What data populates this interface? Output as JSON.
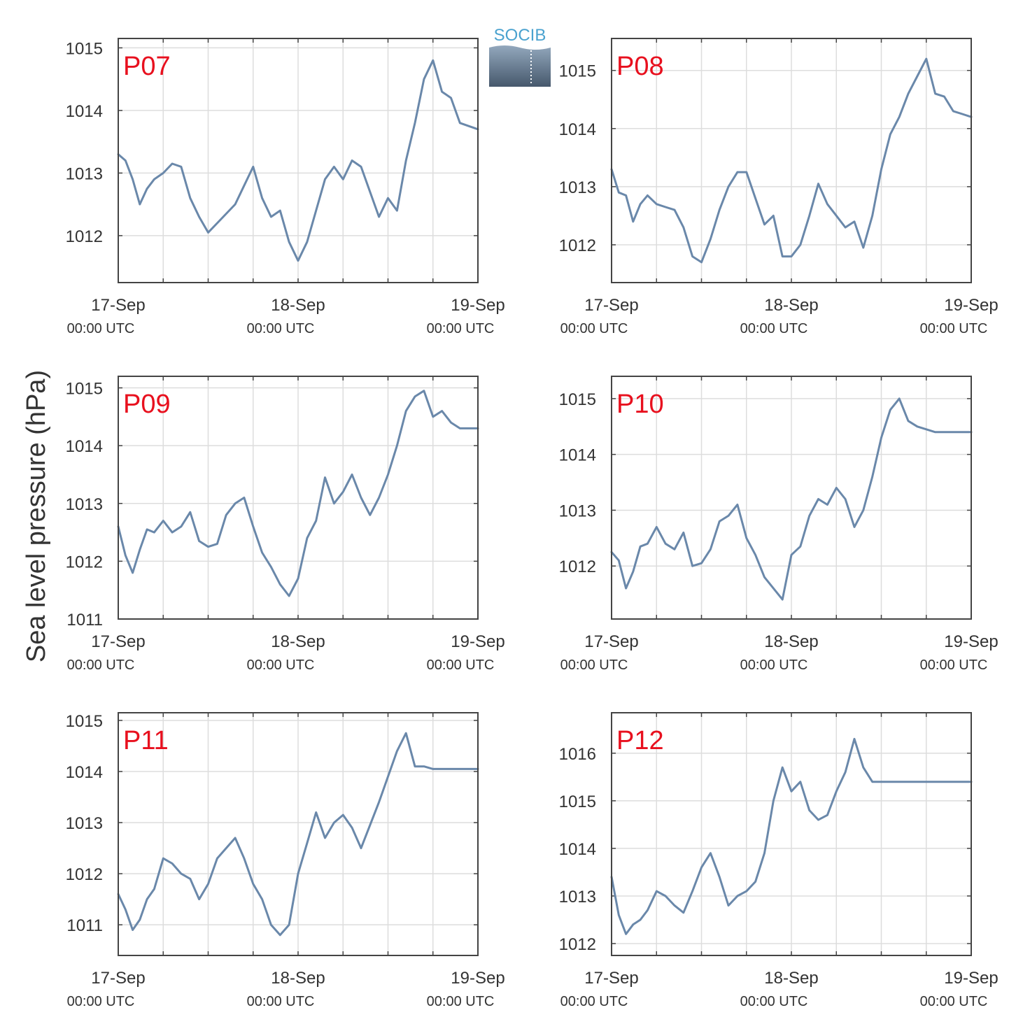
{
  "figure": {
    "ylabel": "Sea level pressure (hPa)",
    "logo_text": "SOCIB",
    "x_ticks": [
      {
        "date": "17-Sep",
        "time": "00:00 UTC",
        "day": 0
      },
      {
        "date": "18-Sep",
        "time": "00:00 UTC",
        "day": 1
      },
      {
        "date": "19-Sep",
        "time": "00:00 UTC",
        "day": 2
      }
    ],
    "line_color": "#6a88aa",
    "label_color": "#e8101e"
  },
  "chart_data": [
    {
      "type": "line",
      "title": "P07",
      "xlim": [
        0,
        2
      ],
      "ylim": [
        1011.25,
        1015.15
      ],
      "yticks": [
        1012,
        1013,
        1014,
        1015
      ],
      "x": [
        0,
        0.04,
        0.08,
        0.12,
        0.16,
        0.2,
        0.25,
        0.3,
        0.35,
        0.4,
        0.45,
        0.5,
        0.55,
        0.6,
        0.65,
        0.7,
        0.75,
        0.8,
        0.85,
        0.9,
        0.95,
        1.0,
        1.05,
        1.1,
        1.15,
        1.2,
        1.25,
        1.3,
        1.35,
        1.4,
        1.45,
        1.5,
        1.55,
        1.6,
        1.65,
        1.7,
        1.75,
        1.8,
        1.85,
        1.9,
        1.95,
        2.0
      ],
      "y": [
        1013.3,
        1013.2,
        1012.9,
        1012.5,
        1012.75,
        1012.9,
        1013.0,
        1013.15,
        1013.1,
        1012.6,
        1012.3,
        1012.05,
        1012.2,
        1012.35,
        1012.5,
        1012.8,
        1013.1,
        1012.6,
        1012.3,
        1012.4,
        1011.9,
        1011.6,
        1011.9,
        1012.4,
        1012.9,
        1013.1,
        1012.9,
        1013.2,
        1013.1,
        1012.7,
        1012.3,
        1012.6,
        1012.4,
        1013.2,
        1013.8,
        1014.5,
        1014.8,
        1014.3,
        1014.2,
        1013.8,
        1013.75,
        1013.7
      ]
    },
    {
      "type": "line",
      "title": "P08",
      "xlim": [
        0,
        2
      ],
      "ylim": [
        1011.35,
        1015.55
      ],
      "yticks": [
        1012,
        1013,
        1014,
        1015
      ],
      "x": [
        0,
        0.04,
        0.08,
        0.12,
        0.16,
        0.2,
        0.25,
        0.3,
        0.35,
        0.4,
        0.45,
        0.5,
        0.55,
        0.6,
        0.65,
        0.7,
        0.75,
        0.8,
        0.85,
        0.9,
        0.95,
        1.0,
        1.05,
        1.1,
        1.15,
        1.2,
        1.25,
        1.3,
        1.35,
        1.4,
        1.45,
        1.5,
        1.55,
        1.6,
        1.65,
        1.7,
        1.75,
        1.8,
        1.85,
        1.9,
        1.95,
        2.0
      ],
      "y": [
        1013.3,
        1012.9,
        1012.85,
        1012.4,
        1012.7,
        1012.85,
        1012.7,
        1012.65,
        1012.6,
        1012.3,
        1011.8,
        1011.7,
        1012.1,
        1012.6,
        1013.0,
        1013.25,
        1013.25,
        1012.8,
        1012.35,
        1012.5,
        1011.8,
        1011.8,
        1012.0,
        1012.5,
        1013.05,
        1012.7,
        1012.5,
        1012.3,
        1012.4,
        1011.95,
        1012.5,
        1013.3,
        1013.9,
        1014.2,
        1014.6,
        1014.9,
        1015.2,
        1014.6,
        1014.55,
        1014.3,
        1014.25,
        1014.2
      ]
    },
    {
      "type": "line",
      "title": "P09",
      "xlim": [
        0,
        2
      ],
      "ylim": [
        1011.0,
        1015.2
      ],
      "yticks": [
        1011,
        1012,
        1013,
        1014,
        1015
      ],
      "x": [
        0,
        0.04,
        0.08,
        0.12,
        0.16,
        0.2,
        0.25,
        0.3,
        0.35,
        0.4,
        0.45,
        0.5,
        0.55,
        0.6,
        0.65,
        0.7,
        0.75,
        0.8,
        0.85,
        0.9,
        0.95,
        1.0,
        1.05,
        1.1,
        1.15,
        1.2,
        1.25,
        1.3,
        1.35,
        1.4,
        1.45,
        1.5,
        1.55,
        1.6,
        1.65,
        1.7,
        1.75,
        1.8,
        1.85,
        1.9,
        1.95,
        2.0
      ],
      "y": [
        1012.6,
        1012.1,
        1011.8,
        1012.2,
        1012.55,
        1012.5,
        1012.7,
        1012.5,
        1012.6,
        1012.85,
        1012.35,
        1012.25,
        1012.3,
        1012.8,
        1013.0,
        1013.1,
        1012.6,
        1012.15,
        1011.9,
        1011.6,
        1011.4,
        1011.7,
        1012.4,
        1012.7,
        1013.45,
        1013.0,
        1013.2,
        1013.5,
        1013.1,
        1012.8,
        1013.1,
        1013.5,
        1014.0,
        1014.6,
        1014.85,
        1014.95,
        1014.5,
        1014.6,
        1014.4,
        1014.3,
        1014.3,
        1014.3
      ]
    },
    {
      "type": "line",
      "title": "P10",
      "xlim": [
        0,
        2
      ],
      "ylim": [
        1011.05,
        1015.4
      ],
      "yticks": [
        1012,
        1013,
        1014,
        1015
      ],
      "x": [
        0,
        0.04,
        0.08,
        0.12,
        0.16,
        0.2,
        0.25,
        0.3,
        0.35,
        0.4,
        0.45,
        0.5,
        0.55,
        0.6,
        0.65,
        0.7,
        0.75,
        0.8,
        0.85,
        0.9,
        0.95,
        1.0,
        1.05,
        1.1,
        1.15,
        1.2,
        1.25,
        1.3,
        1.35,
        1.4,
        1.45,
        1.5,
        1.55,
        1.6,
        1.65,
        1.7,
        1.75,
        1.8,
        1.85,
        1.9,
        1.95,
        2.0
      ],
      "y": [
        1012.25,
        1012.1,
        1011.6,
        1011.9,
        1012.35,
        1012.4,
        1012.7,
        1012.4,
        1012.3,
        1012.6,
        1012.0,
        1012.05,
        1012.3,
        1012.8,
        1012.9,
        1013.1,
        1012.5,
        1012.2,
        1011.8,
        1011.6,
        1011.4,
        1012.2,
        1012.35,
        1012.9,
        1013.2,
        1013.1,
        1013.4,
        1013.2,
        1012.7,
        1013.0,
        1013.6,
        1014.3,
        1014.8,
        1015.0,
        1014.6,
        1014.5,
        1014.45,
        1014.4,
        1014.4,
        1014.4,
        1014.4,
        1014.4
      ]
    },
    {
      "type": "line",
      "title": "P11",
      "xlim": [
        0,
        2
      ],
      "ylim": [
        1010.4,
        1015.15
      ],
      "yticks": [
        1011,
        1012,
        1013,
        1014,
        1015
      ],
      "x": [
        0,
        0.04,
        0.08,
        0.12,
        0.16,
        0.2,
        0.25,
        0.3,
        0.35,
        0.4,
        0.45,
        0.5,
        0.55,
        0.6,
        0.65,
        0.7,
        0.75,
        0.8,
        0.85,
        0.9,
        0.95,
        1.0,
        1.05,
        1.1,
        1.15,
        1.2,
        1.25,
        1.3,
        1.35,
        1.4,
        1.45,
        1.5,
        1.55,
        1.6,
        1.65,
        1.7,
        1.75,
        1.8,
        1.85,
        1.9,
        1.95,
        2.0
      ],
      "y": [
        1011.6,
        1011.3,
        1010.9,
        1011.1,
        1011.5,
        1011.7,
        1012.3,
        1012.2,
        1012.0,
        1011.9,
        1011.5,
        1011.8,
        1012.3,
        1012.5,
        1012.7,
        1012.3,
        1011.8,
        1011.5,
        1011.0,
        1010.8,
        1011.0,
        1012.0,
        1012.6,
        1013.2,
        1012.7,
        1013.0,
        1013.15,
        1012.9,
        1012.5,
        1012.95,
        1013.4,
        1013.9,
        1014.4,
        1014.75,
        1014.1,
        1014.1,
        1014.05,
        1014.05,
        1014.05,
        1014.05,
        1014.05,
        1014.05
      ]
    },
    {
      "type": "line",
      "title": "P12",
      "xlim": [
        0,
        2
      ],
      "ylim": [
        1011.75,
        1016.85
      ],
      "yticks": [
        1012,
        1013,
        1014,
        1015,
        1016
      ],
      "x": [
        0,
        0.04,
        0.08,
        0.12,
        0.16,
        0.2,
        0.25,
        0.3,
        0.35,
        0.4,
        0.45,
        0.5,
        0.55,
        0.6,
        0.65,
        0.7,
        0.75,
        0.8,
        0.85,
        0.9,
        0.95,
        1.0,
        1.05,
        1.1,
        1.15,
        1.2,
        1.25,
        1.3,
        1.35,
        1.4,
        1.45,
        1.5,
        1.55,
        1.6,
        1.65,
        1.7,
        1.75,
        1.8,
        1.85,
        1.9,
        1.95,
        2.0
      ],
      "y": [
        1013.4,
        1012.6,
        1012.2,
        1012.4,
        1012.5,
        1012.7,
        1013.1,
        1013.0,
        1012.8,
        1012.65,
        1013.1,
        1013.6,
        1013.9,
        1013.4,
        1012.8,
        1013.0,
        1013.1,
        1013.3,
        1013.9,
        1015.0,
        1015.7,
        1015.2,
        1015.4,
        1014.8,
        1014.6,
        1014.7,
        1015.2,
        1015.6,
        1016.3,
        1015.7,
        1015.4,
        1015.4,
        1015.4,
        1015.4,
        1015.4,
        1015.4,
        1015.4,
        1015.4,
        1015.4,
        1015.4,
        1015.4,
        1015.4
      ]
    }
  ]
}
